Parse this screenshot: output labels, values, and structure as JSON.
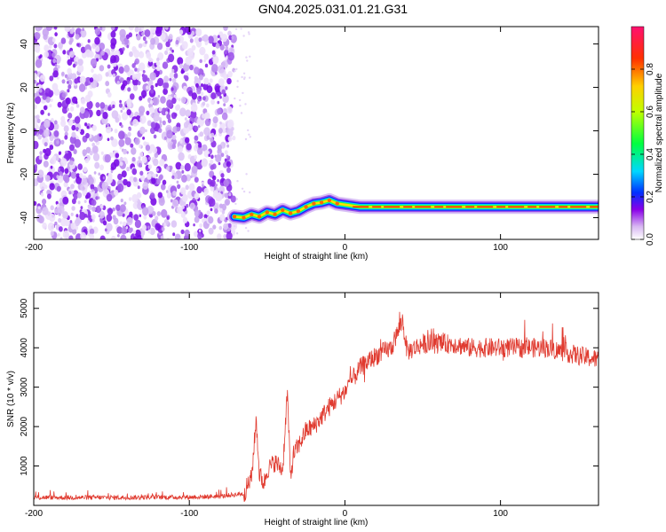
{
  "title": "GN04.2025.031.01.21.G31",
  "chart_data": [
    {
      "type": "heatmap",
      "xlabel": "Height of straight line (km)",
      "ylabel": "Frequency (Hz)",
      "xlim": [
        -200,
        163
      ],
      "ylim": [
        -50,
        48
      ],
      "x_ticks": [
        -200,
        -100,
        0,
        100
      ],
      "y_ticks": [
        -40,
        -20,
        0,
        20,
        40
      ],
      "colorbar": {
        "label": "Normalized spectral amplitude",
        "range": [
          0,
          1
        ],
        "ticks": [
          "0.0",
          "0.2",
          "0.4",
          "0.6",
          "0.8"
        ],
        "colormap": "hsv_reversed (white→violet→blue→cyan→green→yellow→orange→red→pink)"
      },
      "noise_region": {
        "x": [
          -200,
          -71
        ],
        "freq": [
          -50,
          48
        ],
        "amplitude": 0.1
      },
      "signal_trace": {
        "x": [
          -71,
          -65,
          -60,
          -55,
          -50,
          -45,
          -40,
          -35,
          -30,
          -25,
          -20,
          -15,
          -10,
          -5,
          0,
          10,
          30,
          60,
          100,
          163
        ],
        "freq": [
          -39.5,
          -40,
          -38.5,
          -39.5,
          -37.5,
          -38.5,
          -36.5,
          -38,
          -37,
          -35,
          -33.5,
          -33,
          -32,
          -33.5,
          -34,
          -35,
          -35,
          -35,
          -35,
          -35
        ],
        "peak_amplitude": 1.0
      },
      "grid": false
    },
    {
      "type": "line",
      "xlabel": "Height of straight line (km)",
      "ylabel": "SNR (10 * v/v)",
      "xlim": [
        -200,
        163
      ],
      "ylim": [
        0,
        5400
      ],
      "x_ticks": [
        -200,
        -100,
        0,
        100
      ],
      "y_ticks": [
        1000,
        2000,
        3000,
        4000,
        5000
      ],
      "color": "#e03a2f",
      "series": [
        {
          "x": [
            -200,
            -150,
            -100,
            -80,
            -65,
            -60,
            -57,
            -55,
            -52,
            -50,
            -45,
            -40,
            -37,
            -35,
            -33,
            -30,
            -25,
            -20,
            -10,
            0,
            10,
            20,
            30,
            37,
            40,
            50,
            60,
            70,
            80,
            90,
            100,
            110,
            120,
            130,
            140,
            150,
            163
          ],
          "values": [
            200,
            200,
            210,
            230,
            300,
            700,
            2200,
            800,
            550,
            900,
            1100,
            900,
            2900,
            700,
            1300,
            1500,
            1900,
            2000,
            2500,
            2900,
            3500,
            3800,
            4000,
            4700,
            3900,
            4100,
            4100,
            4100,
            4000,
            4000,
            4000,
            4000,
            4000,
            4000,
            3900,
            3800,
            3700
          ],
          "noise_amplitude": 250
        }
      ],
      "grid": false
    }
  ]
}
